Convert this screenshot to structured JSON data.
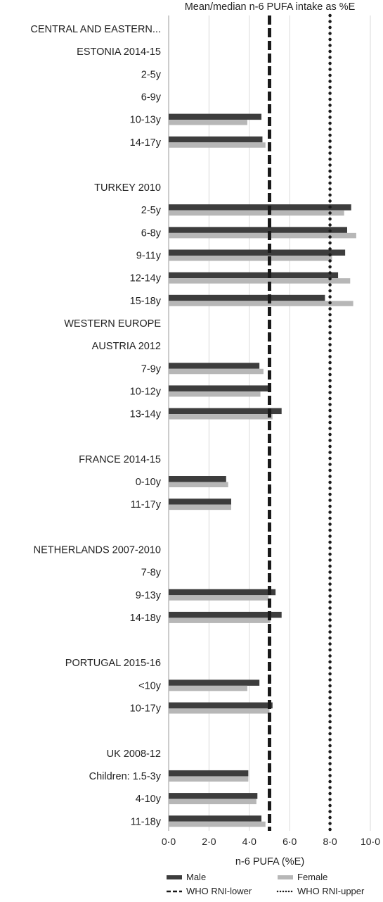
{
  "chart_data": {
    "type": "bar",
    "orientation": "horizontal",
    "title": "Mean/median n-6 PUFA intake as %E",
    "xlabel": "n-6 PUFA (%E)",
    "xlim": [
      0,
      10
    ],
    "x_ticks": [
      "0·0",
      "2·0",
      "4·0",
      "6·0",
      "8·0",
      "10·0"
    ],
    "grid": true,
    "legend_position": "bottom",
    "series": [
      {
        "name": "Male",
        "color": "#3d3d3d"
      },
      {
        "name": "Female",
        "color": "#b7b7b7"
      }
    ],
    "reference_lines": [
      {
        "name": "WHO RNI-lower",
        "value": 5,
        "style": "dashed",
        "color": "#1a1a1a"
      },
      {
        "name": "WHO RNI-upper",
        "value": 8,
        "style": "dotted",
        "color": "#1a1a1a"
      }
    ],
    "rows": [
      {
        "label": "CENTRAL AND EASTERN...",
        "male": null,
        "female": null
      },
      {
        "label": "ESTONIA 2014-15",
        "male": null,
        "female": null
      },
      {
        "label": "2-5y",
        "male": null,
        "female": null
      },
      {
        "label": "6-9y",
        "male": null,
        "female": null
      },
      {
        "label": "10-13y",
        "male": 4.6,
        "female": 3.9
      },
      {
        "label": "14-17y",
        "male": 4.65,
        "female": 4.8
      },
      {
        "label": "",
        "male": null,
        "female": null
      },
      {
        "label": "TURKEY 2010",
        "male": null,
        "female": null
      },
      {
        "label": "2-5y",
        "male": 9.05,
        "female": 8.7
      },
      {
        "label": "6-8y",
        "male": 8.85,
        "female": 9.3
      },
      {
        "label": "9-11y",
        "male": 8.75,
        "female": 8.1
      },
      {
        "label": "12-14y",
        "male": 8.4,
        "female": 9.0
      },
      {
        "label": "15-18y",
        "male": 7.75,
        "female": 9.15
      },
      {
        "label": "WESTERN EUROPE",
        "male": null,
        "female": null
      },
      {
        "label": "AUSTRIA 2012",
        "male": null,
        "female": null
      },
      {
        "label": "7-9y",
        "male": 4.5,
        "female": 4.7
      },
      {
        "label": "10-12y",
        "male": 5.05,
        "female": 4.55
      },
      {
        "label": "13-14y",
        "male": 5.6,
        "female": 5.15
      },
      {
        "label": "",
        "male": null,
        "female": null
      },
      {
        "label": "FRANCE 2014-15",
        "male": null,
        "female": null
      },
      {
        "label": "0-10y",
        "male": 2.85,
        "female": 2.95
      },
      {
        "label": "11-17y",
        "male": 3.1,
        "female": 3.1
      },
      {
        "label": "",
        "male": null,
        "female": null
      },
      {
        "label": "NETHERLANDS 2007-2010",
        "male": null,
        "female": null
      },
      {
        "label": "7-8y",
        "male": null,
        "female": null
      },
      {
        "label": "9-13y",
        "male": 5.3,
        "female": 4.95
      },
      {
        "label": "14-18y",
        "male": 5.6,
        "female": 5.05
      },
      {
        "label": "",
        "male": null,
        "female": null
      },
      {
        "label": "PORTUGAL 2015-16",
        "male": null,
        "female": null
      },
      {
        "label": "<10y",
        "male": 4.5,
        "female": 3.9
      },
      {
        "label": "10-17y",
        "male": 5.15,
        "female": 5.0
      },
      {
        "label": "",
        "male": null,
        "female": null
      },
      {
        "label": "UK 2008-12",
        "male": null,
        "female": null
      },
      {
        "label": "Children: 1.5-3y",
        "male": 3.95,
        "female": 3.95
      },
      {
        "label": "4-10y",
        "male": 4.4,
        "female": 4.35
      },
      {
        "label": "11-18y",
        "male": 4.6,
        "female": 4.8
      }
    ]
  }
}
